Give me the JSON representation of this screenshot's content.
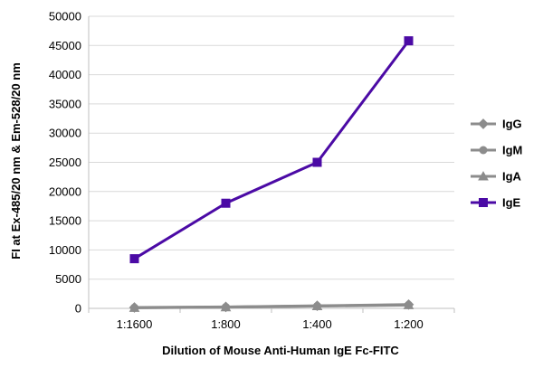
{
  "chart_data": {
    "type": "line",
    "title": "",
    "xlabel": "Dilution of Mouse Anti-Human IgE Fc-FITC",
    "ylabel": "FI at Ex-485/20 nm & Em-528/20 nm",
    "categories": [
      "1:1600",
      "1:800",
      "1:400",
      "1:200"
    ],
    "ylim": [
      0,
      50000
    ],
    "yticks": [
      0,
      5000,
      10000,
      15000,
      20000,
      25000,
      30000,
      35000,
      40000,
      45000,
      50000
    ],
    "grid": true,
    "legend": "right",
    "series": [
      {
        "name": "IgG",
        "values": [
          150,
          250,
          450,
          650
        ],
        "color": "#8c8c8c",
        "marker": "diamond"
      },
      {
        "name": "IgM",
        "values": [
          120,
          220,
          400,
          600
        ],
        "color": "#8c8c8c",
        "marker": "circle"
      },
      {
        "name": "IgA",
        "values": [
          100,
          200,
          380,
          560
        ],
        "color": "#8c8c8c",
        "marker": "triangle"
      },
      {
        "name": "IgE",
        "values": [
          8500,
          18000,
          25000,
          45800
        ],
        "color": "#4b0aa5",
        "marker": "square"
      }
    ]
  }
}
